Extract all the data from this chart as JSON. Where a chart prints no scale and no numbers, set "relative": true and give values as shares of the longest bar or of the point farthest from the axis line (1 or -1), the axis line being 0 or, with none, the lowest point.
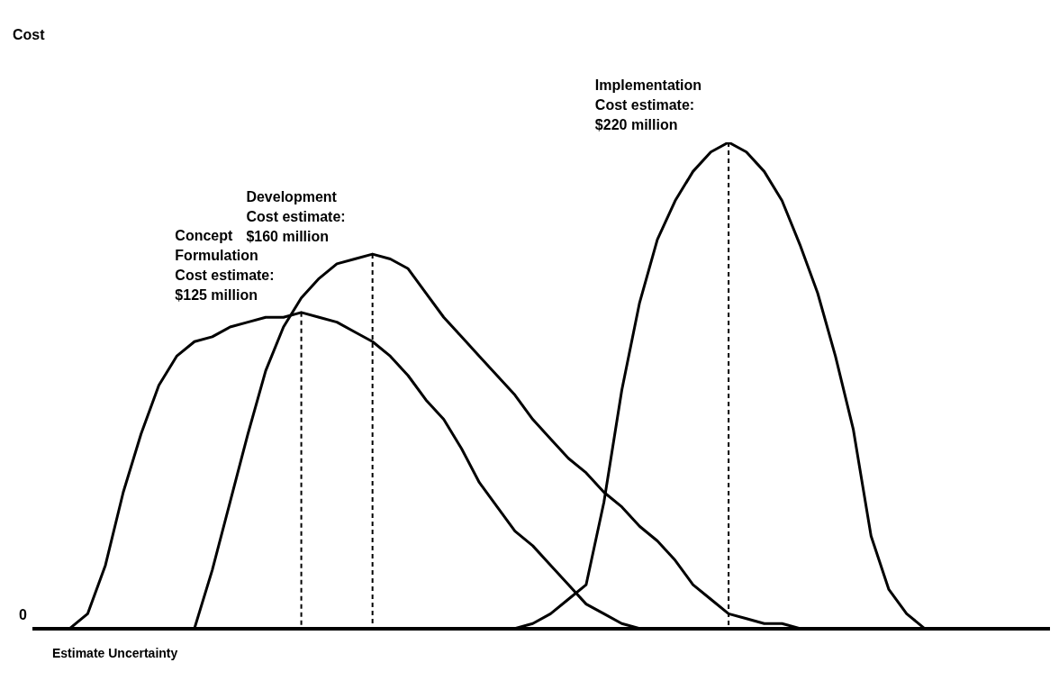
{
  "chart_data": {
    "type": "line",
    "relative": true,
    "xlabel": "Estimate Uncertainty",
    "legend": false,
    "marker": "none",
    "categories": [
      null,
      null,
      null,
      null,
      null,
      null,
      null,
      null,
      null,
      null,
      null,
      null,
      null,
      null,
      null,
      null,
      null,
      null,
      null,
      null,
      null,
      null,
      null,
      null,
      null,
      null,
      null,
      null,
      null,
      null,
      null,
      null,
      null,
      null,
      null,
      null,
      null,
      null,
      null,
      null,
      null,
      null,
      null,
      null,
      null,
      null,
      null,
      null,
      null,
      null,
      null,
      null,
      null,
      null,
      null,
      null,
      null,
      null
    ],
    "series": [
      {
        "color": "#000000",
        "values": [
          null,
          null,
          0,
          0.03,
          0.13,
          0.28,
          0.4,
          0.5,
          0.56,
          0.59,
          0.6,
          0.62,
          0.63,
          0.64,
          0.64,
          0.65,
          0.64,
          0.63,
          0.61,
          0.59,
          0.56,
          0.52,
          0.47,
          0.43,
          0.37,
          0.3,
          0.25,
          0.2,
          0.17,
          0.13,
          0.09,
          0.05,
          0.03,
          0.01,
          0,
          null,
          null,
          null,
          null,
          null,
          null,
          null,
          null,
          null,
          null,
          null,
          null,
          null,
          null,
          null,
          null,
          null,
          null,
          null,
          null,
          null,
          null,
          null
        ]
      },
      {
        "color": "#000000",
        "values": [
          null,
          null,
          null,
          null,
          null,
          null,
          null,
          null,
          null,
          0,
          0.12,
          0.26,
          0.4,
          0.53,
          0.62,
          0.68,
          0.72,
          0.75,
          0.76,
          0.77,
          0.76,
          0.74,
          0.69,
          0.64,
          0.6,
          0.56,
          0.52,
          0.48,
          0.43,
          0.39,
          0.35,
          0.32,
          0.28,
          0.25,
          0.21,
          0.18,
          0.14,
          0.09,
          0.06,
          0.03,
          0.02,
          0.01,
          0.01,
          0,
          null,
          null,
          null,
          null,
          null,
          null,
          null,
          null,
          null,
          null,
          null,
          null,
          null,
          null
        ]
      },
      {
        "color": "#000000",
        "values": [
          null,
          null,
          null,
          null,
          null,
          null,
          null,
          null,
          null,
          null,
          null,
          null,
          null,
          null,
          null,
          null,
          null,
          null,
          null,
          null,
          null,
          null,
          null,
          null,
          null,
          null,
          null,
          0,
          0.01,
          0.03,
          0.06,
          0.09,
          0.26,
          0.49,
          0.67,
          0.8,
          0.88,
          0.94,
          0.98,
          1,
          0.98,
          0.94,
          0.88,
          0.79,
          0.69,
          0.56,
          0.41,
          0.19,
          0.08,
          0.03,
          0,
          null,
          null,
          null,
          null,
          null,
          null,
          null
        ]
      }
    ],
    "annotations": [
      "Cost",
      "0",
      "Concept\nFormulation\nCost estimate:\n$125 million",
      "Development\nCost estimate:\n$160 million",
      "Implementation\nCost estimate:\n$220 million"
    ]
  }
}
